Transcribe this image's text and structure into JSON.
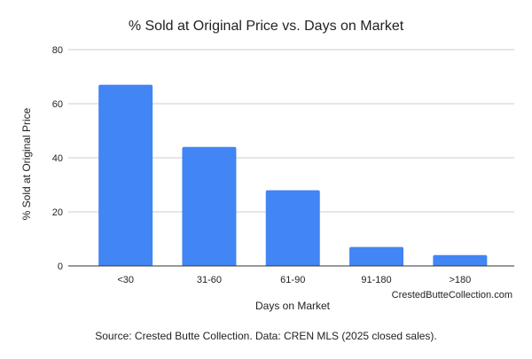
{
  "chart_data": {
    "type": "bar",
    "title": "% Sold at Original Price vs. Days on Market",
    "xlabel": "Days on Market",
    "ylabel": "% Sold at Original Price",
    "categories": [
      "<30",
      "31-60",
      "61-90",
      "91-180",
      ">180"
    ],
    "values": [
      67,
      44,
      28,
      7,
      4
    ],
    "ylim": [
      0,
      80
    ],
    "yticks": [
      0,
      20,
      40,
      60,
      80
    ],
    "grid": true,
    "bar_color": "#4285f4",
    "watermark": "CrestedButteCollection.com",
    "source": "Source: Crested Butte Collection. Data: CREN MLS (2025 closed sales)."
  }
}
